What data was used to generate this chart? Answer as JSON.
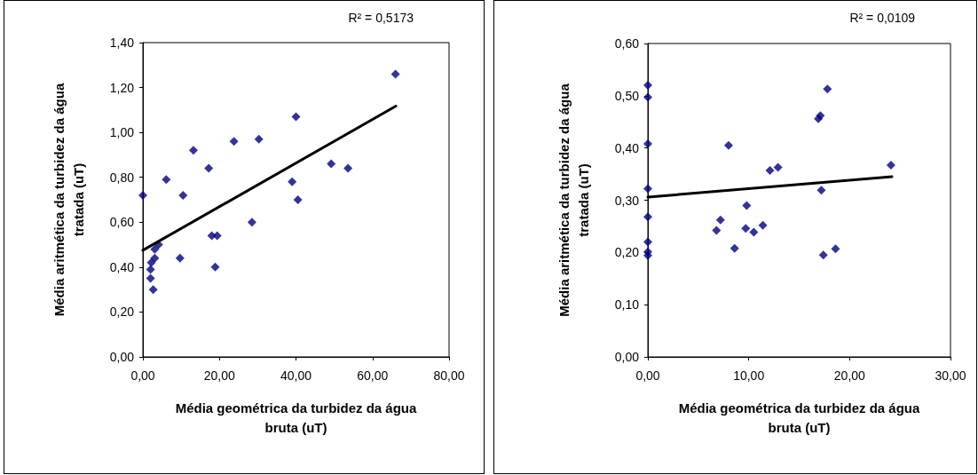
{
  "chart_data": [
    {
      "type": "scatter",
      "xlabel": "Média geométrica da turbidez da água bruta (uT)",
      "ylabel": "Média aritmética da turbidez da água tratada (uT)",
      "annotations": [
        "R² = 0,5173"
      ],
      "xlim": [
        0,
        80
      ],
      "xticks": [
        {
          "value": 0,
          "label": "0,00"
        },
        {
          "value": 20,
          "label": "20,00"
        },
        {
          "value": 40,
          "label": "40,00"
        },
        {
          "value": 60,
          "label": "60,00"
        },
        {
          "value": 80,
          "label": "80,00"
        }
      ],
      "ylim": [
        0,
        1.4
      ],
      "yticks": [
        {
          "value": 0,
          "label": "0,00"
        },
        {
          "value": 0.2,
          "label": "0,20"
        },
        {
          "value": 0.4,
          "label": "0,40"
        },
        {
          "value": 0.6,
          "label": "0,60"
        },
        {
          "value": 0.8,
          "label": "0,80"
        },
        {
          "value": 1.0,
          "label": "1,00"
        },
        {
          "value": 1.2,
          "label": "1,20"
        },
        {
          "value": 1.4,
          "label": "1,40"
        }
      ],
      "grid": false,
      "marker": "diamond",
      "series": [
        {
          "color": "#000080",
          "x": [
            0,
            6.1,
            10.5,
            13.2,
            17.2,
            23.8,
            30.3,
            40.0,
            39.0,
            40.5,
            49.2,
            53.6,
            66.0,
            28.5,
            18.0,
            19.4,
            18.9,
            9.7,
            4.1,
            3.1,
            3.1,
            2.2,
            2.0,
            2.0,
            2.7
          ],
          "values": [
            0.72,
            0.79,
            0.72,
            0.92,
            0.84,
            0.96,
            0.97,
            1.07,
            0.78,
            0.7,
            0.86,
            0.84,
            1.26,
            0.6,
            0.54,
            0.54,
            0.4,
            0.44,
            0.5,
            0.48,
            0.44,
            0.42,
            0.39,
            0.35,
            0.3
          ]
        },
        {
          "type": "line",
          "color": "#000000",
          "marker": "none",
          "line_style": "solid",
          "x": [
            0,
            66.1
          ],
          "values": [
            0.475,
            1.117
          ]
        }
      ]
    },
    {
      "type": "scatter",
      "xlabel": "Média geométrica da turbidez da água bruta (uT)",
      "ylabel": "Média aritmética da turbidez da água tratada (uT)",
      "annotations": [
        "R² = 0,0109"
      ],
      "xlim": [
        0,
        30
      ],
      "xticks": [
        {
          "value": 0,
          "label": "0,00"
        },
        {
          "value": 10,
          "label": "10,00"
        },
        {
          "value": 20,
          "label": "20,00"
        },
        {
          "value": 30,
          "label": "30,00"
        }
      ],
      "ylim": [
        0,
        0.6
      ],
      "yticks": [
        {
          "value": 0,
          "label": "0,00"
        },
        {
          "value": 0.1,
          "label": "0,10"
        },
        {
          "value": 0.2,
          "label": "0,20"
        },
        {
          "value": 0.3,
          "label": "0,30"
        },
        {
          "value": 0.4,
          "label": "0,40"
        },
        {
          "value": 0.5,
          "label": "0,50"
        },
        {
          "value": 0.6,
          "label": "0,60"
        }
      ],
      "grid": false,
      "marker": "diamond",
      "series": [
        {
          "color": "#000080",
          "x": [
            0,
            0,
            0,
            0,
            0,
            0,
            0,
            0,
            6.8,
            7.2,
            8.0,
            8.6,
            9.8,
            9.7,
            10.5,
            11.4,
            12.1,
            12.9,
            16.9,
            17.1,
            17.8,
            17.2,
            17.4,
            18.6,
            24.1
          ],
          "values": [
            0.52,
            0.497,
            0.408,
            0.322,
            0.268,
            0.22,
            0.201,
            0.194,
            0.242,
            0.262,
            0.405,
            0.208,
            0.29,
            0.246,
            0.239,
            0.252,
            0.357,
            0.363,
            0.456,
            0.462,
            0.513,
            0.319,
            0.195,
            0.207,
            0.367
          ]
        },
        {
          "type": "line",
          "color": "#000000",
          "marker": "none",
          "line_style": "solid",
          "x": [
            0,
            24.2
          ],
          "values": [
            0.306,
            0.345
          ]
        }
      ]
    }
  ]
}
